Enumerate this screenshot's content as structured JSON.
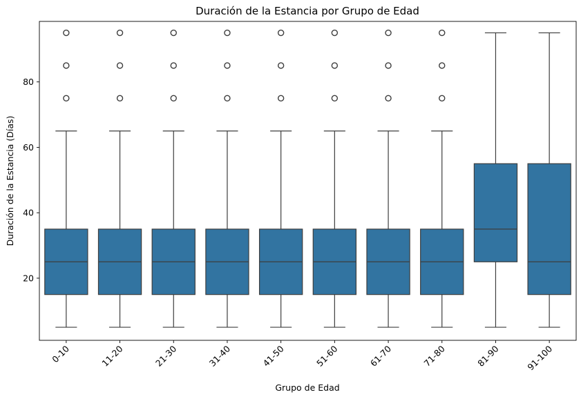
{
  "chart_data": {
    "type": "box",
    "title": "Duración de la Estancia por Grupo de Edad",
    "xlabel": "Grupo de Edad",
    "ylabel": "Duración de la Estancia (Días)",
    "ylim": [
      1,
      98.5
    ],
    "yticks": [
      20,
      40,
      60,
      80
    ],
    "grid": false,
    "box_color": "#3274a1",
    "line_color": "#3d3d3d",
    "categories": [
      "0-10",
      "11-20",
      "21-30",
      "31-40",
      "41-50",
      "51-60",
      "61-70",
      "71-80",
      "81-90",
      "91-100"
    ],
    "boxes": [
      {
        "whisker_low": 5,
        "q1": 15,
        "median": 25,
        "q3": 35,
        "whisker_high": 65,
        "outliers": [
          75,
          85,
          95
        ]
      },
      {
        "whisker_low": 5,
        "q1": 15,
        "median": 25,
        "q3": 35,
        "whisker_high": 65,
        "outliers": [
          75,
          85,
          95
        ]
      },
      {
        "whisker_low": 5,
        "q1": 15,
        "median": 25,
        "q3": 35,
        "whisker_high": 65,
        "outliers": [
          75,
          85,
          95
        ]
      },
      {
        "whisker_low": 5,
        "q1": 15,
        "median": 25,
        "q3": 35,
        "whisker_high": 65,
        "outliers": [
          75,
          85,
          95
        ]
      },
      {
        "whisker_low": 5,
        "q1": 15,
        "median": 25,
        "q3": 35,
        "whisker_high": 65,
        "outliers": [
          75,
          85,
          95
        ]
      },
      {
        "whisker_low": 5,
        "q1": 15,
        "median": 25,
        "q3": 35,
        "whisker_high": 65,
        "outliers": [
          75,
          85,
          95
        ]
      },
      {
        "whisker_low": 5,
        "q1": 15,
        "median": 25,
        "q3": 35,
        "whisker_high": 65,
        "outliers": [
          75,
          85,
          95
        ]
      },
      {
        "whisker_low": 5,
        "q1": 15,
        "median": 25,
        "q3": 35,
        "whisker_high": 65,
        "outliers": [
          75,
          85,
          95
        ]
      },
      {
        "whisker_low": 5,
        "q1": 25,
        "median": 35,
        "q3": 55,
        "whisker_high": 95,
        "outliers": []
      },
      {
        "whisker_low": 5,
        "q1": 15,
        "median": 25,
        "q3": 55,
        "whisker_high": 95,
        "outliers": []
      }
    ]
  }
}
